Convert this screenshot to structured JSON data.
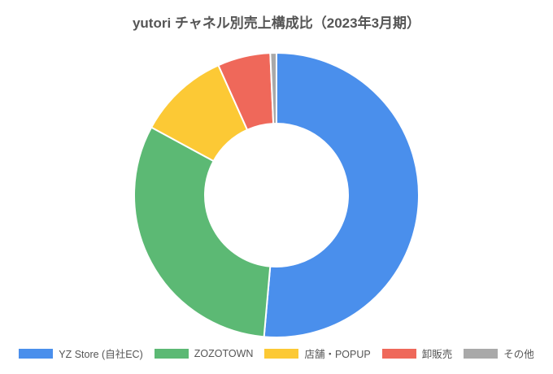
{
  "chart_data": {
    "type": "pie",
    "variant": "donut",
    "title": "yutori チャネル別売上構成比（2023年3月期）",
    "categories": [
      "YZ Store (自社EC)",
      "ZOZOTOWN",
      "店舗・POPUP",
      "卸販売",
      "その他"
    ],
    "values": [
      51.4,
      31.5,
      10.4,
      6.0,
      0.7
    ],
    "unit": "%",
    "colors": [
      "#4a8fec",
      "#5cb974",
      "#fcc935",
      "#ef685a",
      "#a9a9a9"
    ],
    "legend_position": "bottom"
  }
}
